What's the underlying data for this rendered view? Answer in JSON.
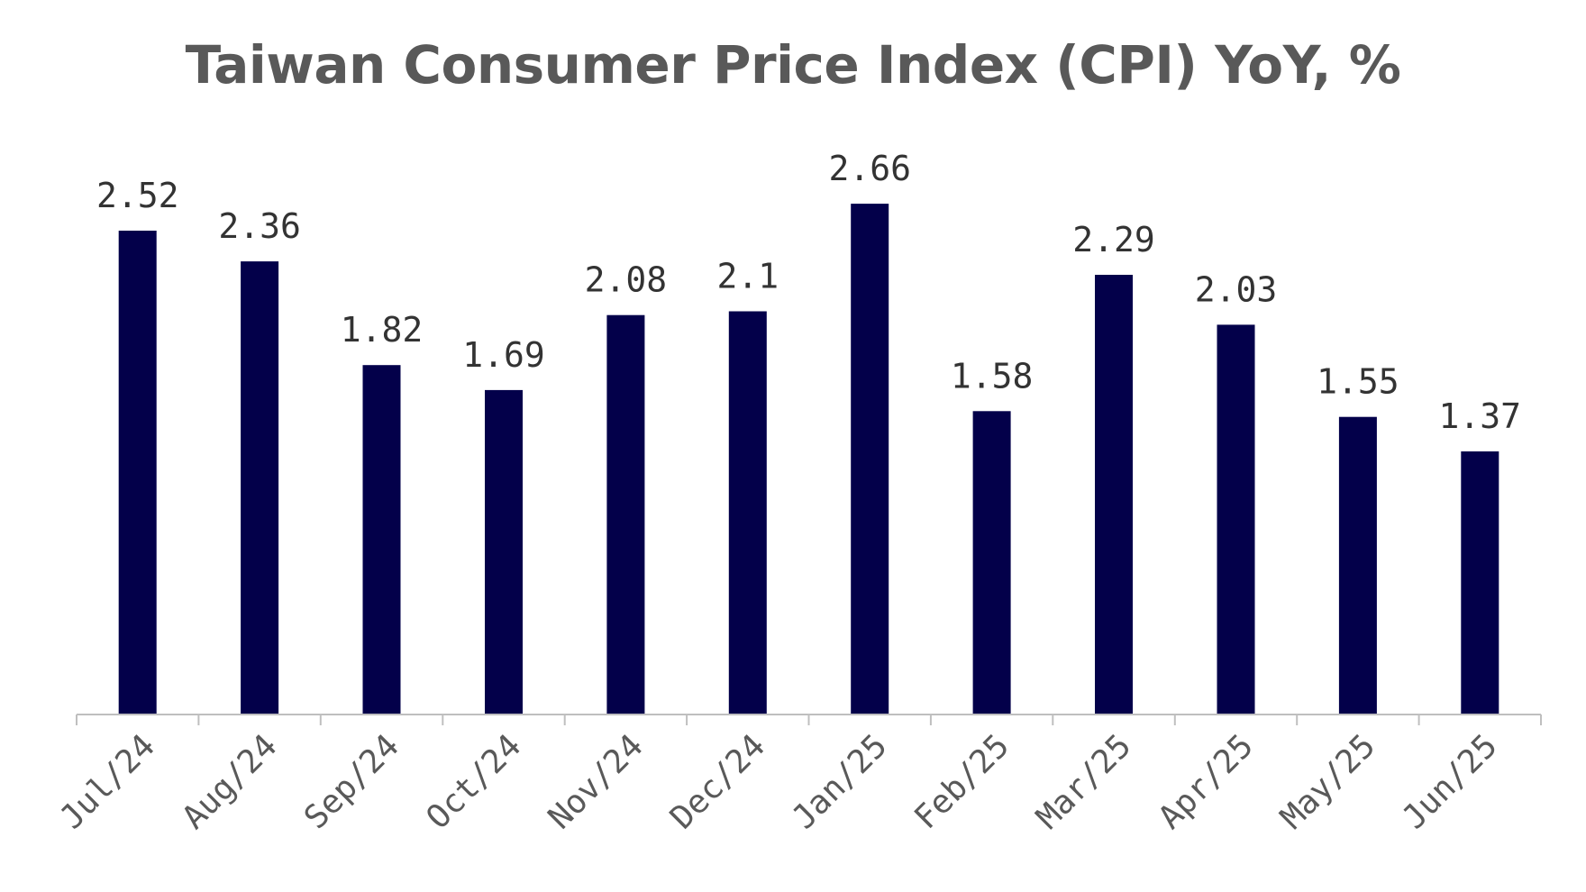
{
  "chart_data": {
    "type": "bar",
    "title": "Taiwan Consumer Price Index (CPI) YoY, %",
    "xlabel": "",
    "ylabel": "",
    "categories": [
      "Jul/24",
      "Aug/24",
      "Sep/24",
      "Oct/24",
      "Nov/24",
      "Dec/24",
      "Jan/25",
      "Feb/25",
      "Mar/25",
      "Apr/25",
      "May/25",
      "Jun/25"
    ],
    "values": [
      2.52,
      2.36,
      1.82,
      1.69,
      2.08,
      2.1,
      2.66,
      1.58,
      2.29,
      2.03,
      1.55,
      1.37
    ],
    "value_labels": [
      "2.52",
      "2.36",
      "1.82",
      "1.69",
      "2.08",
      "2.1",
      "2.66",
      "1.58",
      "2.29",
      "2.03",
      "1.55",
      "1.37"
    ],
    "ylim": [
      0,
      2.9
    ],
    "grid": false,
    "legend": "none",
    "colors": {
      "bar": "#03004a",
      "axis": "#bfbfbf",
      "title": "#595959",
      "label": "#333333",
      "tick": "#595959"
    }
  }
}
